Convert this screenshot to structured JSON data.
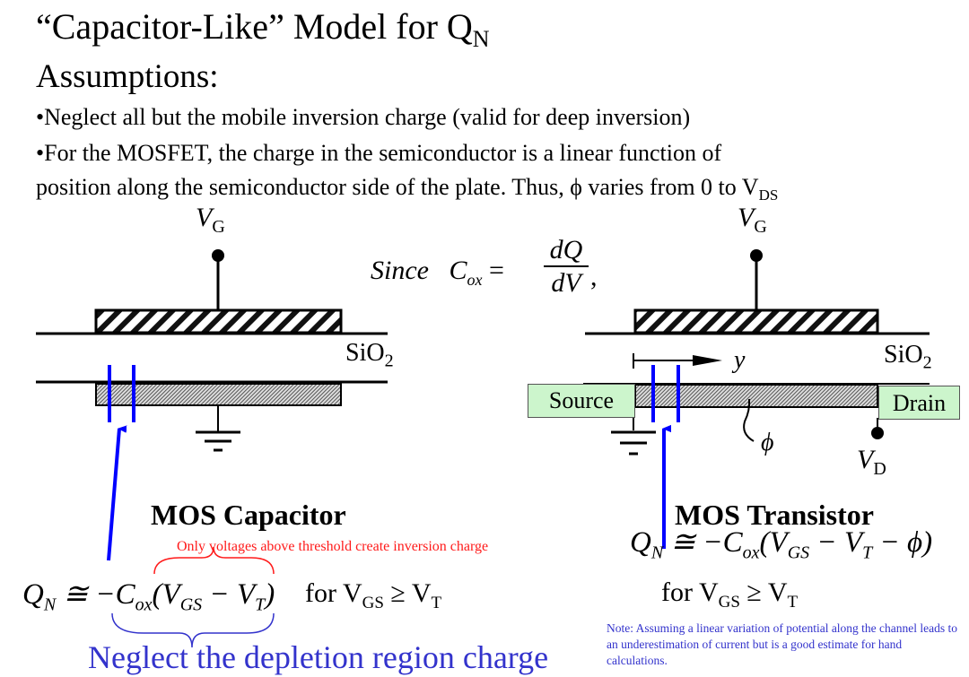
{
  "title": {
    "text": "“Capacitor-Like” Model for Q",
    "sub": "N"
  },
  "assumptions_heading": "Assumptions:",
  "bullets": [
    {
      "text": "•Neglect all but the mobile inversion charge (valid for deep inversion)"
    },
    {
      "text": "•For the MOSFET, the charge in the semiconductor is a linear function of"
    },
    {
      "text": "position along the semiconductor side of the plate.  Thus, ϕ varies from 0 to V",
      "sub": "DS"
    }
  ],
  "since_eq": {
    "since": "Since",
    "lhs": "C",
    "lhs_sub": "ox",
    "eq": "=",
    "num": "dQ",
    "den": "dV",
    "comma": ","
  },
  "capacitor": {
    "gate_label": "V",
    "gate_sub": "G",
    "oxide_label": "SiO",
    "oxide_sub": "2",
    "heading": "MOS Capacitor",
    "note": "Only voltages above threshold create inversion charge",
    "equation": "Q_N ≅ −C_ox(V_GS − V_T)",
    "condition": {
      "text": "for V",
      "sub1": "GS",
      "mid": " ≥ V",
      "sub2": "T"
    },
    "brace_note": "Neglect the depletion region charge"
  },
  "transistor": {
    "gate_label": "V",
    "gate_sub": "G",
    "oxide_label": "SiO",
    "oxide_sub": "2",
    "axis_label": "y",
    "source_label": "Source",
    "drain_label": "Drain",
    "drain_voltage": "V",
    "drain_sub": "D",
    "potential_label": "ϕ",
    "heading": "MOS Transistor",
    "equation": "Q_N ≅ −C_ox(V_GS − V_T − ϕ)",
    "condition": {
      "text": "for V",
      "sub1": "GS",
      "mid": " ≥ V",
      "sub2": "T"
    },
    "note": "Note: Assuming a linear variation of potential along the channel leads to an underestimation of current but is a good estimate for hand calculations."
  },
  "colors": {
    "annotation_blue": "#0000ff",
    "text_blue": "#3333cc",
    "note_red": "#ff1a1a",
    "contact_green": "#ccf5cc"
  }
}
